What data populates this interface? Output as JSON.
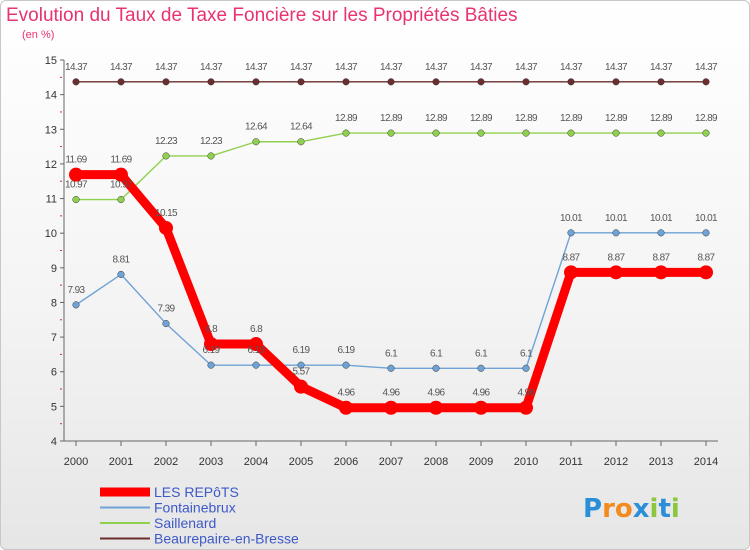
{
  "chart_data": {
    "type": "line",
    "title": "Evolution du Taux de Taxe Foncière sur les Propriétés Bâties",
    "subtitle": "(en %)",
    "x": [
      "2000",
      "2001",
      "2002",
      "2003",
      "2004",
      "2005",
      "2006",
      "2007",
      "2008",
      "2009",
      "2010",
      "2011",
      "2012",
      "2013",
      "2014"
    ],
    "ylim": [
      4,
      15
    ],
    "yticks": [
      "4",
      "5",
      "6",
      "7",
      "8",
      "9",
      "10",
      "11",
      "12",
      "13",
      "14",
      "15"
    ],
    "grid": false,
    "legend_position": "bottom-left",
    "series": [
      {
        "name": "Beaurepaire-en-Bresse",
        "color": "#6b2d2d",
        "values": [
          14.37,
          14.37,
          14.37,
          14.37,
          14.37,
          14.37,
          14.37,
          14.37,
          14.37,
          14.37,
          14.37,
          14.37,
          14.37,
          14.37,
          14.37
        ],
        "labels": [
          "14.37",
          "14.37",
          "14.37",
          "14.37",
          "14.37",
          "14.37",
          "14.37",
          "14.37",
          "14.37",
          "14.37",
          "14.37",
          "14.37",
          "14.37",
          "14.37",
          "14.37"
        ]
      },
      {
        "name": "Saillenard",
        "color": "#8fd14f",
        "values": [
          10.97,
          10.97,
          12.23,
          12.23,
          12.64,
          12.64,
          12.89,
          12.89,
          12.89,
          12.89,
          12.89,
          12.89,
          12.89,
          12.89,
          12.89
        ],
        "labels": [
          "10.97",
          "10.97",
          "12.23",
          "12.23",
          "12.64",
          "12.64",
          "12.89",
          "12.89",
          "12.89",
          "12.89",
          "12.89",
          "12.89",
          "12.89",
          "12.89",
          "12.89"
        ]
      },
      {
        "name": "Fontainebrux",
        "color": "#6fa3d6",
        "values": [
          7.93,
          8.81,
          7.39,
          6.19,
          6.19,
          6.19,
          6.19,
          6.1,
          6.1,
          6.1,
          6.1,
          10.01,
          10.01,
          10.01,
          10.01
        ],
        "labels": [
          "7.93",
          "8.81",
          "7.39",
          "6.19",
          "6.19",
          "6.19",
          "6.19",
          "6.1",
          "6.1",
          "6.1",
          "6.1",
          "10.01",
          "10.01",
          "10.01",
          "10.01"
        ]
      },
      {
        "name": "LES REPôTS",
        "color": "#ff0000",
        "values": [
          11.69,
          11.69,
          10.15,
          6.8,
          6.8,
          5.57,
          4.96,
          4.96,
          4.96,
          4.96,
          4.96,
          8.87,
          8.87,
          8.87,
          8.87
        ],
        "labels": [
          "11.69",
          "11.69",
          "10.15",
          "6.8",
          "6.8",
          "5.57",
          "4.96",
          "4.96",
          "4.96",
          "4.96",
          "4.96",
          "8.87",
          "8.87",
          "8.87",
          "8.87"
        ]
      }
    ],
    "legend": [
      "LES REPôTS",
      "Fontainebrux",
      "Saillenard",
      "Beaurepaire-en-Bresse"
    ]
  },
  "logo": {
    "letters": [
      "P",
      "r",
      "o",
      "x",
      "i",
      "t",
      "i"
    ],
    "colors": [
      "#2a8fd8",
      "#f28a1e",
      "#f28a1e",
      "#2a8fd8",
      "#8cc63f",
      "#2a8fd8",
      "#8cc63f"
    ]
  }
}
